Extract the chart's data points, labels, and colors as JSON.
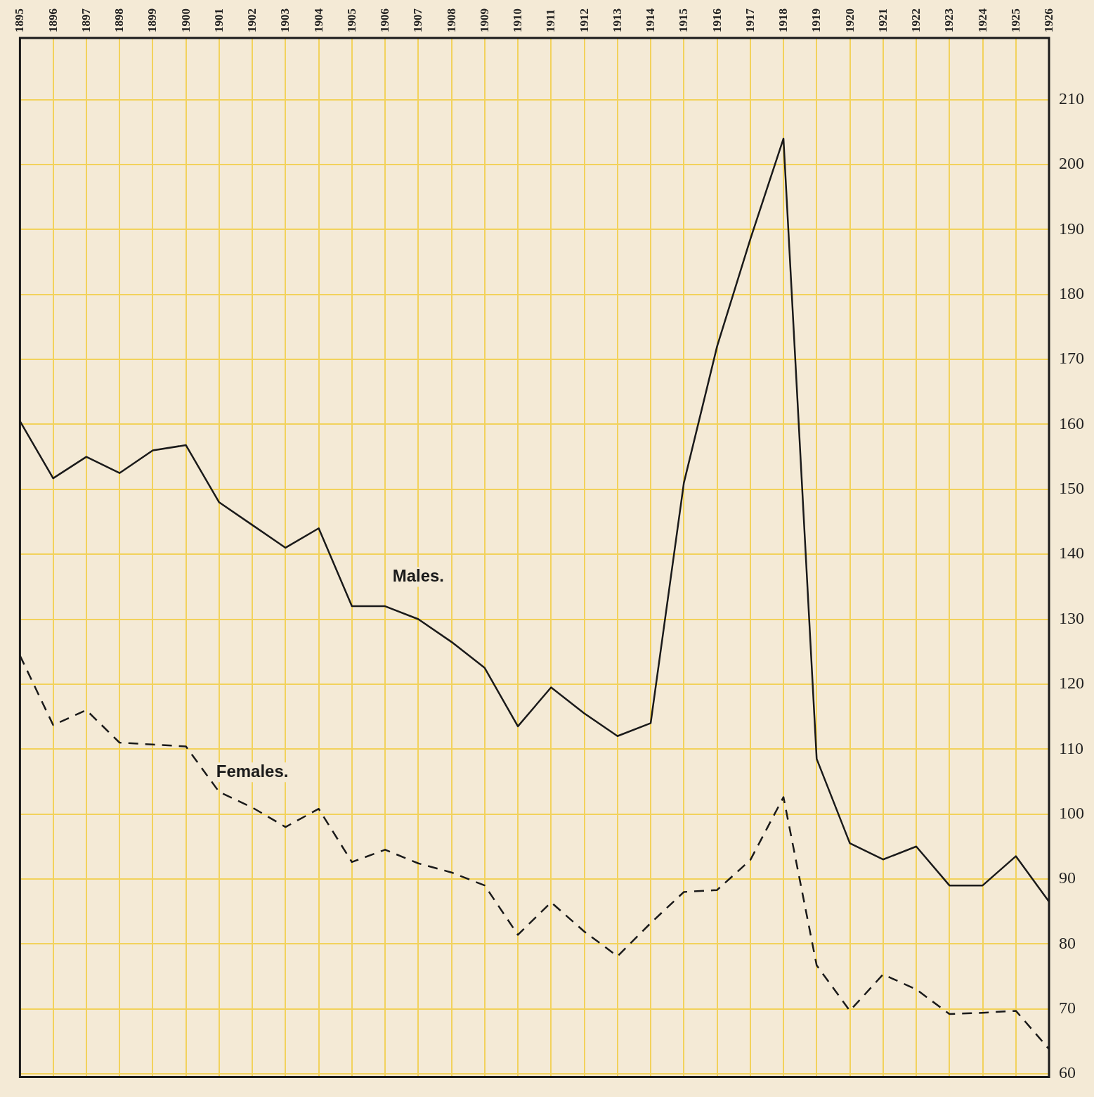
{
  "chart_data": {
    "type": "line",
    "categories": [
      "1895",
      "1896",
      "1897",
      "1898",
      "1899",
      "1900",
      "1901",
      "1902",
      "1903",
      "1904",
      "1905",
      "1906",
      "1907",
      "1908",
      "1909",
      "1910",
      "1911",
      "1912",
      "1913",
      "1914",
      "1915",
      "1916",
      "1917",
      "1918",
      "1919",
      "1920",
      "1921",
      "1922",
      "1923",
      "1924",
      "1925",
      "1926"
    ],
    "series": [
      {
        "name": "Males.",
        "color": "#1a1a1a",
        "line_style": "solid",
        "values": [
          160.5,
          151.7,
          155,
          152.5,
          156,
          156.8,
          148,
          144.5,
          141,
          144,
          132,
          132,
          130,
          126.5,
          122.5,
          113.5,
          119.5,
          115.5,
          112,
          114,
          151,
          172,
          188.5,
          204,
          108.5,
          95.5,
          93,
          95,
          89,
          89,
          93.5,
          86.5
        ]
      },
      {
        "name": "Females.",
        "color": "#1a1a1a",
        "line_style": "dashed",
        "values": [
          124.4,
          113.7,
          116,
          111,
          110.7,
          110.4,
          103.4,
          101,
          98,
          100.8,
          92.6,
          94.5,
          92.4,
          91,
          89,
          81.4,
          86.4,
          81.9,
          78.1,
          83.2,
          88,
          88.3,
          92.9,
          102.6,
          76.7,
          69.7,
          75.3,
          73,
          69.2,
          69.4,
          69.7,
          63.8
        ]
      }
    ],
    "ylim": [
      59.5,
      219.5
    ],
    "yticks": [
      60,
      70,
      80,
      90,
      100,
      110,
      120,
      130,
      140,
      150,
      160,
      170,
      180,
      190,
      200,
      210
    ],
    "grid": true,
    "legend": false,
    "marker": "none"
  }
}
